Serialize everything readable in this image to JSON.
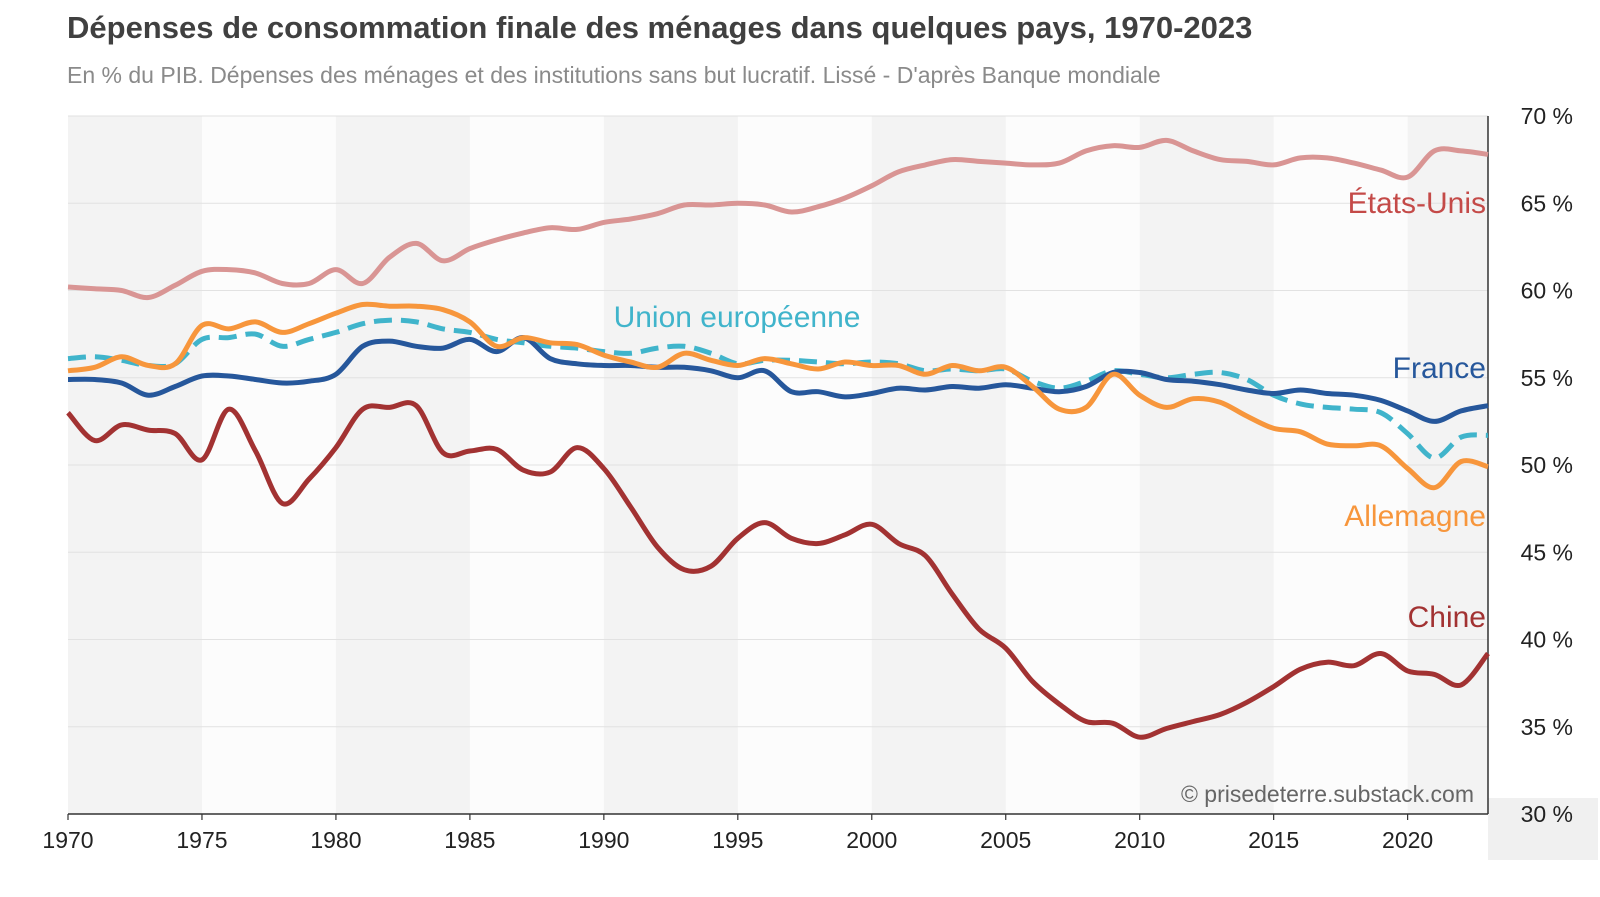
{
  "chart_data": {
    "type": "line",
    "title": "Dépenses de consommation finale des ménages dans quelques pays, 1970-2023",
    "subtitle": "En % du PIB. Dépenses des ménages et des institutions sans but lucratif. Lissé - D'après Banque mondiale",
    "credit": "© prisedeterre.substack.com",
    "xlabel": "",
    "ylabel": "",
    "xlim": [
      1970,
      2023
    ],
    "ylim": [
      30,
      70
    ],
    "x_ticks": [
      1970,
      1975,
      1980,
      1985,
      1990,
      1995,
      2000,
      2005,
      2010,
      2015,
      2020
    ],
    "y_ticks": [
      30,
      35,
      40,
      45,
      50,
      55,
      60,
      65,
      70
    ],
    "y_tick_labels": [
      "30 %",
      "35 %",
      "40 %",
      "45 %",
      "50 %",
      "55 %",
      "60 %",
      "65 %",
      "70 %"
    ],
    "x": [
      1970,
      1971,
      1972,
      1973,
      1974,
      1975,
      1976,
      1977,
      1978,
      1979,
      1980,
      1981,
      1982,
      1983,
      1984,
      1985,
      1986,
      1987,
      1988,
      1989,
      1990,
      1991,
      1992,
      1993,
      1994,
      1995,
      1996,
      1997,
      1998,
      1999,
      2000,
      2001,
      2002,
      2003,
      2004,
      2005,
      2006,
      2007,
      2008,
      2009,
      2010,
      2011,
      2012,
      2013,
      2014,
      2015,
      2016,
      2017,
      2018,
      2019,
      2020,
      2021,
      2022,
      2023
    ],
    "series": [
      {
        "name": "États-Unis",
        "color": "#d99594",
        "dashed": false,
        "values": [
          60.2,
          60.1,
          60.0,
          59.6,
          60.3,
          61.1,
          61.2,
          61.0,
          60.4,
          60.4,
          61.2,
          60.4,
          61.9,
          62.7,
          61.7,
          62.4,
          62.9,
          63.3,
          63.6,
          63.5,
          63.9,
          64.1,
          64.4,
          64.9,
          64.9,
          65.0,
          64.9,
          64.5,
          64.8,
          65.3,
          66.0,
          66.8,
          67.2,
          67.5,
          67.4,
          67.3,
          67.2,
          67.3,
          68.0,
          68.3,
          68.2,
          68.6,
          68.0,
          67.5,
          67.4,
          67.2,
          67.6,
          67.6,
          67.3,
          66.9,
          66.5,
          68.0,
          68.0,
          67.8
        ]
      },
      {
        "name": "Union européenne",
        "color": "#40b4cb",
        "dashed": true,
        "values": [
          56.1,
          56.2,
          56.0,
          55.7,
          55.8,
          57.2,
          57.3,
          57.5,
          56.8,
          57.2,
          57.6,
          58.1,
          58.3,
          58.2,
          57.8,
          57.6,
          57.2,
          57.0,
          56.8,
          56.7,
          56.5,
          56.4,
          56.7,
          56.8,
          56.4,
          55.8,
          56.0,
          56.0,
          55.9,
          55.8,
          55.9,
          55.8,
          55.4,
          55.5,
          55.4,
          55.5,
          54.8,
          54.4,
          54.8,
          55.4,
          55.2,
          55.0,
          55.2,
          55.3,
          54.9,
          54.0,
          53.5,
          53.3,
          53.2,
          53.0,
          51.8,
          50.4,
          51.6,
          51.7
        ]
      },
      {
        "name": "France",
        "color": "#26579b",
        "dashed": false,
        "values": [
          54.9,
          54.9,
          54.7,
          54.0,
          54.5,
          55.1,
          55.1,
          54.9,
          54.7,
          54.8,
          55.2,
          56.8,
          57.1,
          56.8,
          56.7,
          57.2,
          56.5,
          57.3,
          56.1,
          55.8,
          55.7,
          55.7,
          55.6,
          55.6,
          55.4,
          55.0,
          55.4,
          54.2,
          54.2,
          53.9,
          54.1,
          54.4,
          54.3,
          54.5,
          54.4,
          54.6,
          54.4,
          54.2,
          54.5,
          55.3,
          55.3,
          54.9,
          54.8,
          54.6,
          54.3,
          54.1,
          54.3,
          54.1,
          54.0,
          53.7,
          53.1,
          52.5,
          53.1,
          53.4
        ]
      },
      {
        "name": "Allemagne",
        "color": "#f7963c",
        "dashed": false,
        "values": [
          55.4,
          55.6,
          56.2,
          55.7,
          55.8,
          58.0,
          57.8,
          58.2,
          57.6,
          58.1,
          58.7,
          59.2,
          59.1,
          59.1,
          58.9,
          58.2,
          56.8,
          57.3,
          57.0,
          56.9,
          56.3,
          55.9,
          55.6,
          56.4,
          56.0,
          55.7,
          56.1,
          55.8,
          55.5,
          55.9,
          55.7,
          55.7,
          55.2,
          55.7,
          55.4,
          55.6,
          54.5,
          53.2,
          53.3,
          55.2,
          54.0,
          53.3,
          53.8,
          53.6,
          52.8,
          52.1,
          51.9,
          51.2,
          51.1,
          51.1,
          49.8,
          48.7,
          50.2,
          49.9
        ]
      },
      {
        "name": "Chine",
        "color": "#a23232",
        "dashed": false,
        "values": [
          53.0,
          51.4,
          52.3,
          52.0,
          51.8,
          50.3,
          53.2,
          50.8,
          47.8,
          49.2,
          51.0,
          53.2,
          53.3,
          53.4,
          50.7,
          50.8,
          50.9,
          49.7,
          49.6,
          51.0,
          49.8,
          47.6,
          45.3,
          44.0,
          44.2,
          45.8,
          46.7,
          45.8,
          45.5,
          46.0,
          46.6,
          45.5,
          44.8,
          42.6,
          40.6,
          39.5,
          37.6,
          36.3,
          35.3,
          35.2,
          34.4,
          34.9,
          35.3,
          35.7,
          36.4,
          37.3,
          38.3,
          38.7,
          38.5,
          39.2,
          38.2,
          38.0,
          37.4,
          39.2
        ]
      }
    ],
    "series_labels": {
      "etats_unis": "États-Unis",
      "union_europeenne": "Union européenne",
      "france": "France",
      "allemagne": "Allemagne",
      "chine": "Chine"
    }
  }
}
